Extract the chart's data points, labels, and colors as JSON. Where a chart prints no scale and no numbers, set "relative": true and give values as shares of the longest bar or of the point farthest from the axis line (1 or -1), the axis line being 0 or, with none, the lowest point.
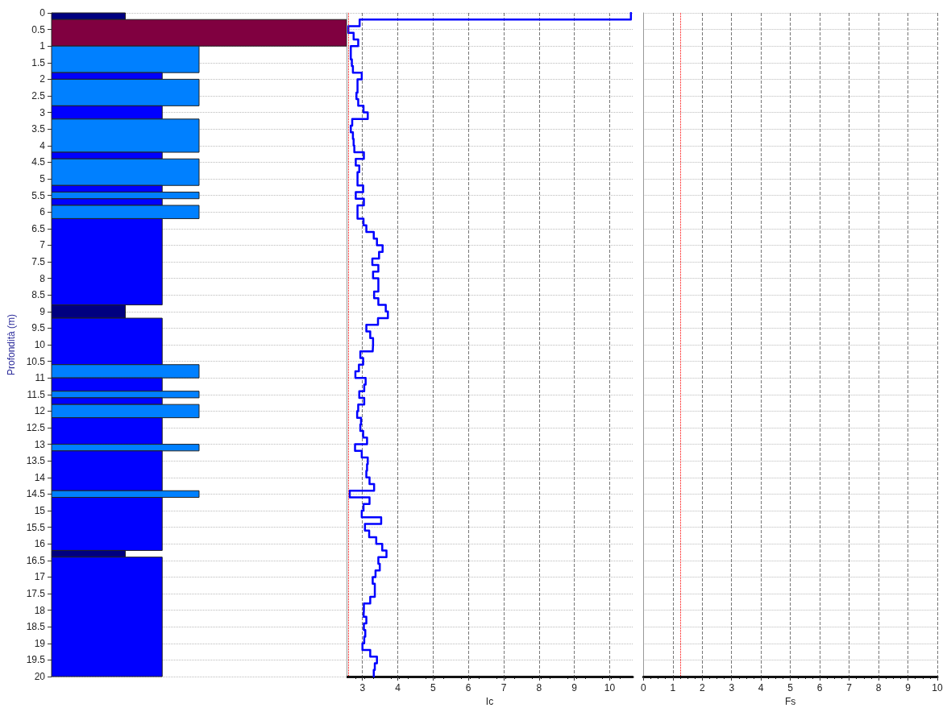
{
  "chart_data": [
    {
      "type": "bar",
      "orientation": "horizontal",
      "relative": true,
      "ylabel": "Profondità (m)",
      "ylim": [
        20,
        0
      ],
      "yticks": [
        0,
        0.5,
        1,
        1.5,
        2,
        2.5,
        3,
        3.5,
        4,
        4.5,
        5,
        5.5,
        6,
        6.5,
        7,
        7.5,
        8,
        8.5,
        9,
        9.5,
        10,
        10.5,
        11,
        11.5,
        12,
        12.5,
        13,
        13.5,
        14,
        14.5,
        15,
        15.5,
        16,
        16.5,
        17,
        17.5,
        18,
        18.5,
        19,
        19.5,
        20
      ],
      "grid": "y",
      "tick_labels": "y",
      "x": [
        0.1,
        0.6,
        1.4,
        1.9,
        2.4,
        3.0,
        3.7,
        4.3,
        4.8,
        5.3,
        5.5,
        5.7,
        6.0,
        7.5,
        9.0,
        9.9,
        10.8,
        11.2,
        11.5,
        11.7,
        12.0,
        12.6,
        13.1,
        13.8,
        14.5,
        15.4,
        16.3,
        18.2
      ],
      "values": [
        0.25,
        1,
        0.5,
        0.375,
        0.5,
        0.375,
        0.5,
        0.375,
        0.5,
        0.375,
        0.5,
        0.375,
        0.5,
        0.375,
        0.25,
        0.375,
        0.5,
        0.375,
        0.5,
        0.375,
        0.5,
        0.375,
        0.5,
        0.375,
        0.5,
        0.375,
        0.25,
        0.375
      ],
      "colors": [
        "#000080",
        "#800040",
        "#0080ff",
        "#0000ff",
        "#0080ff",
        "#0000ff",
        "#0080ff",
        "#0000ff",
        "#0080ff",
        "#0000ff",
        "#0080ff",
        "#0000ff",
        "#0080ff",
        "#0000ff",
        "#000080",
        "#0000ff",
        "#0080ff",
        "#0000ff",
        "#0080ff",
        "#0000ff",
        "#0080ff",
        "#0000ff",
        "#0080ff",
        "#0000ff",
        "#0080ff",
        "#0000ff",
        "#000080",
        "#0000ff"
      ]
    },
    {
      "type": "step",
      "orientation": "horizontal",
      "xlabel": "Ic",
      "xlim": [
        2.55,
        10.65
      ],
      "xticks": [
        3,
        4,
        5,
        6,
        7,
        8,
        9,
        10
      ],
      "ylim": [
        20,
        0
      ],
      "yticks": [
        0,
        0.5,
        1,
        1.5,
        2,
        2.5,
        3,
        3.5,
        4,
        4.5,
        5,
        5.5,
        6,
        6.5,
        7,
        7.5,
        8,
        8.5,
        9,
        9.5,
        10,
        10.5,
        11,
        11.5,
        12,
        12.5,
        13,
        13.5,
        14,
        14.5,
        15,
        15.5,
        16,
        16.5,
        17,
        17.5,
        18,
        18.5,
        19,
        19.5,
        20
      ],
      "grid": true,
      "tick_labels": "x",
      "line_style": "solid",
      "x": [
        0,
        0.2,
        0.4,
        0.6,
        0.8,
        1.0,
        1.2,
        1.4,
        1.6,
        1.8,
        2.0,
        2.2,
        2.4,
        2.6,
        2.8,
        3.0,
        3.2,
        3.4,
        3.6,
        3.8,
        4.0,
        4.2,
        4.4,
        4.6,
        4.8,
        5.0,
        5.2,
        5.4,
        5.6,
        5.8,
        6.0,
        6.2,
        6.4,
        6.6,
        6.8,
        7.0,
        7.2,
        7.4,
        7.6,
        7.8,
        8.0,
        8.2,
        8.4,
        8.6,
        8.8,
        9.0,
        9.2,
        9.4,
        9.6,
        9.8,
        10.0,
        10.2,
        10.4,
        10.6,
        10.8,
        11.0,
        11.2,
        11.4,
        11.6,
        11.8,
        12.0,
        12.2,
        12.4,
        12.6,
        12.8,
        13.0,
        13.2,
        13.4,
        13.6,
        13.8,
        14.0,
        14.2,
        14.4,
        14.6,
        14.8,
        15.0,
        15.2,
        15.4,
        15.6,
        15.8,
        16.0,
        16.2,
        16.4,
        16.6,
        16.8,
        17.0,
        17.2,
        17.4,
        17.6,
        17.8,
        18.0,
        18.2,
        18.4,
        18.6,
        18.8,
        19.0,
        19.2,
        19.4,
        19.6,
        19.8,
        20.0
      ],
      "series": [
        {
          "color": "#0000ff",
          "values": [
            10.6,
            2.92,
            2.6,
            2.75,
            2.88,
            2.67,
            2.67,
            2.7,
            2.73,
            2.98,
            2.86,
            2.86,
            2.83,
            2.88,
            3.03,
            3.15,
            2.71,
            2.67,
            2.73,
            2.75,
            2.77,
            3.04,
            2.81,
            2.91,
            2.86,
            2.86,
            3.02,
            2.81,
            3.04,
            2.86,
            2.86,
            3.03,
            3.11,
            3.32,
            3.41,
            3.57,
            3.47,
            3.28,
            3.45,
            3.3,
            3.45,
            3.45,
            3.33,
            3.45,
            3.66,
            3.72,
            3.44,
            3.11,
            3.22,
            3.3,
            3.29,
            2.94,
            3.02,
            2.9,
            2.8,
            3.09,
            3.05,
            2.91,
            3.05,
            2.88,
            2.85,
            2.96,
            2.94,
            3.02,
            3.13,
            2.79,
            2.98,
            3.15,
            3.13,
            3.11,
            3.2,
            3.33,
            2.64,
            3.2,
            3.03,
            2.98,
            3.53,
            3.07,
            3.19,
            3.39,
            3.56,
            3.68,
            3.45,
            3.49,
            3.37,
            3.29,
            3.35,
            3.35,
            3.22,
            3.04,
            3.03,
            3.11,
            3.04,
            3.08,
            3.05,
            3.0,
            3.22,
            3.41,
            3.35,
            3.32,
            3.32
          ]
        }
      ],
      "ref_lines": [
        {
          "axis": "x",
          "value": 2.6,
          "color": "#ff0000",
          "line_style": "dotted"
        }
      ]
    },
    {
      "type": "line",
      "orientation": "horizontal",
      "xlabel": "Fs",
      "xlim": [
        0,
        10
      ],
      "xticks": [
        0,
        1,
        2,
        3,
        4,
        5,
        6,
        7,
        8,
        9,
        10
      ],
      "ylim": [
        20,
        0
      ],
      "yticks": [
        0,
        0.5,
        1,
        1.5,
        2,
        2.5,
        3,
        3.5,
        4,
        4.5,
        5,
        5.5,
        6,
        6.5,
        7,
        7.5,
        8,
        8.5,
        9,
        9.5,
        10,
        10.5,
        11,
        11.5,
        12,
        12.5,
        13,
        13.5,
        14,
        14.5,
        15,
        15.5,
        16,
        16.5,
        17,
        17.5,
        18,
        18.5,
        19,
        19.5,
        20
      ],
      "grid": true,
      "tick_labels": "x",
      "ref_lines": [
        {
          "axis": "x",
          "value": 1.25,
          "color": "#ff0000",
          "line_style": "dotted"
        }
      ]
    }
  ]
}
